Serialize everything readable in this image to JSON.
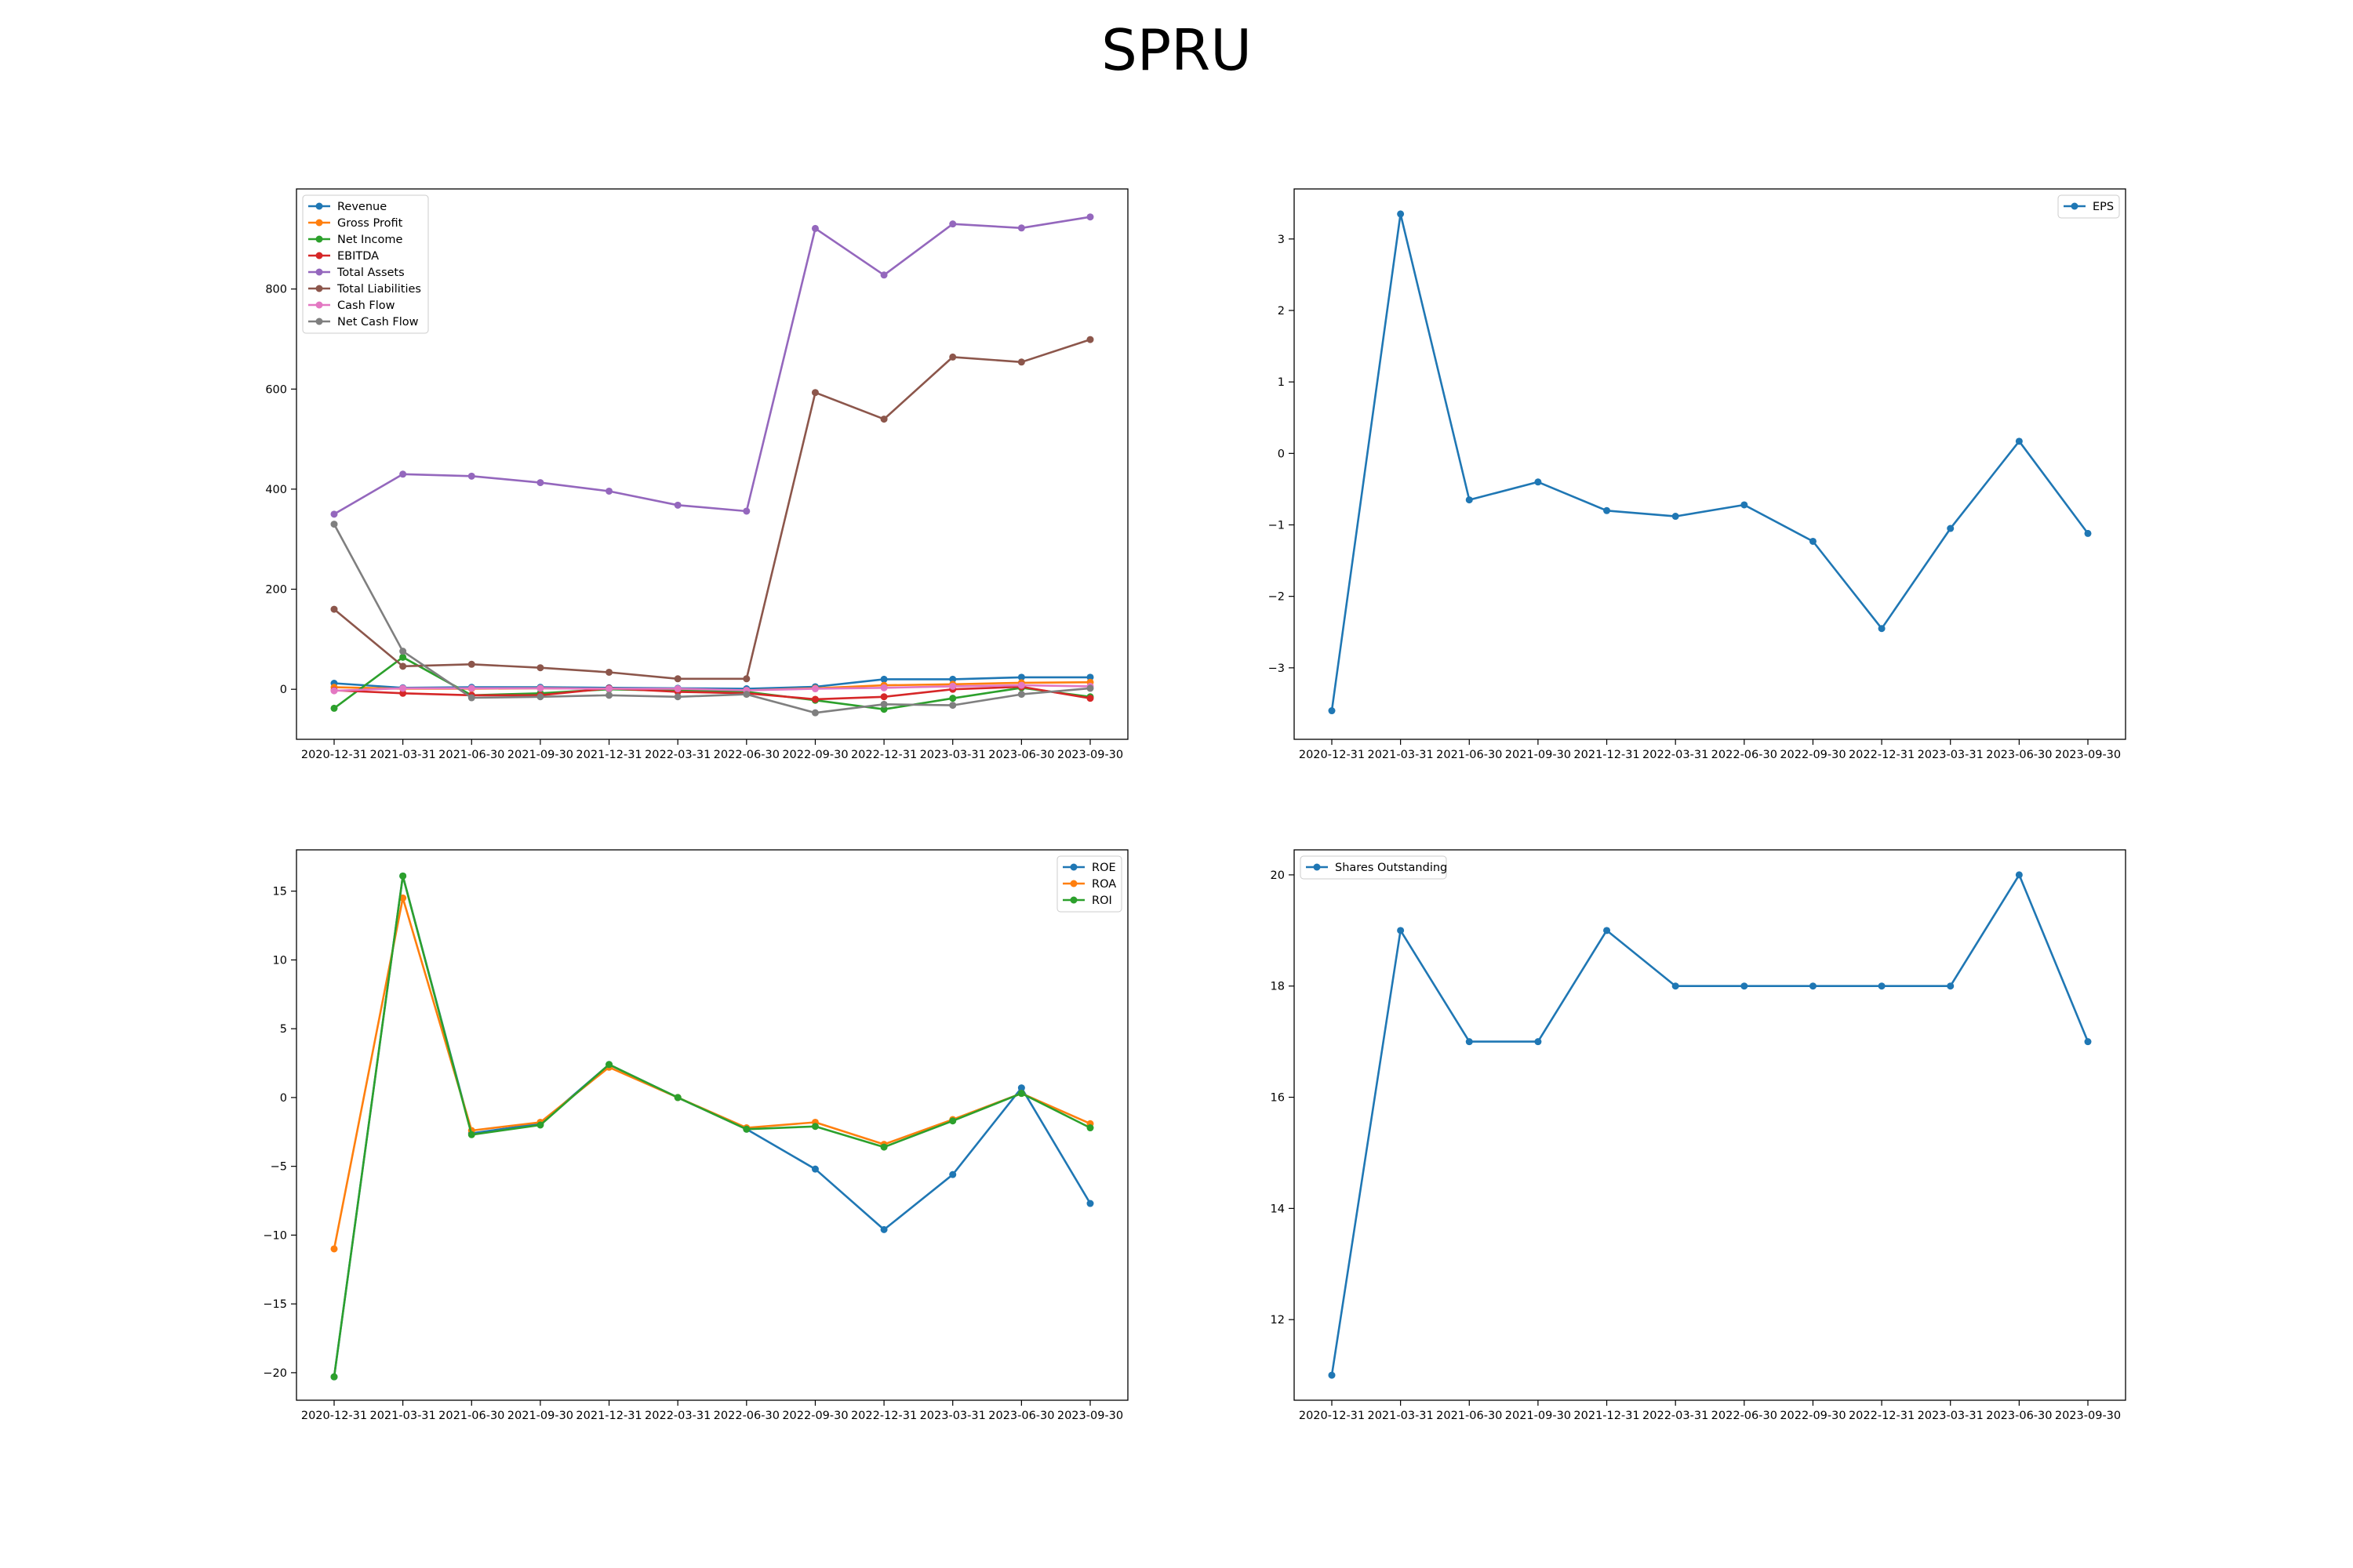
{
  "title": "SPRU",
  "chart_data": [
    {
      "type": "line",
      "x": [
        "2020-12-31",
        "2021-03-31",
        "2021-06-30",
        "2021-09-30",
        "2021-12-31",
        "2022-03-31",
        "2022-06-30",
        "2022-09-30",
        "2022-12-31",
        "2023-03-31",
        "2023-06-30",
        "2023-09-30"
      ],
      "ylim": [
        -100,
        1000
      ],
      "yticks": [
        0,
        200,
        400,
        600,
        800
      ],
      "legend_position": "upper left",
      "series": [
        {
          "name": "Revenue",
          "color": "#1f77b4",
          "values": [
            12,
            3,
            4,
            4,
            3,
            2,
            1,
            5,
            20,
            20,
            24,
            24
          ]
        },
        {
          "name": "Gross Profit",
          "color": "#ff7f0e",
          "values": [
            4,
            1,
            1,
            2,
            1,
            0,
            -2,
            2,
            8,
            10,
            13,
            14
          ]
        },
        {
          "name": "Net Income",
          "color": "#2ca02c",
          "values": [
            -38,
            64,
            -12,
            -8,
            0,
            -3,
            -5,
            -22,
            -40,
            -18,
            3,
            -15
          ]
        },
        {
          "name": "EBITDA",
          "color": "#d62728",
          "values": [
            -2,
            -8,
            -12,
            -12,
            2,
            -5,
            -8,
            -20,
            -15,
            0,
            5,
            -18
          ]
        },
        {
          "name": "Total Assets",
          "color": "#9467bd",
          "values": [
            350,
            430,
            426,
            413,
            396,
            368,
            356,
            921,
            828,
            930,
            922,
            944
          ]
        },
        {
          "name": "Total Liabilities",
          "color": "#8c564b",
          "values": [
            160,
            46,
            50,
            43,
            34,
            21,
            21,
            593,
            540,
            664,
            654,
            699
          ]
        },
        {
          "name": "Cash Flow",
          "color": "#e377c2",
          "values": [
            -3,
            2,
            2,
            2,
            1,
            1,
            -2,
            1,
            3,
            6,
            8,
            6
          ]
        },
        {
          "name": "Net Cash Flow",
          "color": "#7f7f7f",
          "values": [
            330,
            76,
            -17,
            -15,
            -12,
            -15,
            -10,
            -47,
            -30,
            -32,
            -10,
            2
          ]
        }
      ]
    },
    {
      "type": "line",
      "x": [
        "2020-12-31",
        "2021-03-31",
        "2021-06-30",
        "2021-09-30",
        "2021-12-31",
        "2022-03-31",
        "2022-06-30",
        "2022-09-30",
        "2022-12-31",
        "2023-03-31",
        "2023-06-30",
        "2023-09-30"
      ],
      "ylim": [
        -4,
        3.7
      ],
      "yticks": [
        -3,
        -2,
        -1,
        0,
        1,
        2,
        3
      ],
      "legend_position": "upper right",
      "series": [
        {
          "name": "EPS",
          "color": "#1f77b4",
          "values": [
            -3.6,
            3.35,
            -0.65,
            -0.4,
            -0.8,
            -0.88,
            -0.72,
            -1.23,
            -2.45,
            -1.05,
            0.17,
            -1.12
          ]
        }
      ]
    },
    {
      "type": "line",
      "x": [
        "2020-12-31",
        "2021-03-31",
        "2021-06-30",
        "2021-09-30",
        "2021-12-31",
        "2022-03-31",
        "2022-06-30",
        "2022-09-30",
        "2022-12-31",
        "2023-03-31",
        "2023-06-30",
        "2023-09-30"
      ],
      "ylim": [
        -22,
        18
      ],
      "yticks": [
        -20,
        -15,
        -10,
        -5,
        0,
        5,
        10,
        15
      ],
      "legend_position": "upper right",
      "series": [
        {
          "name": "ROE",
          "color": "#1f77b4",
          "values": [
            -20.3,
            16.1,
            -2.6,
            -1.9,
            2.4,
            0,
            -2.3,
            -5.2,
            -9.6,
            -5.6,
            0.7,
            -7.7
          ]
        },
        {
          "name": "ROA",
          "color": "#ff7f0e",
          "values": [
            -11.0,
            14.5,
            -2.4,
            -1.8,
            2.2,
            0,
            -2.2,
            -1.8,
            -3.4,
            -1.6,
            0.3,
            -1.9
          ]
        },
        {
          "name": "ROI",
          "color": "#2ca02c",
          "values": [
            -20.3,
            16.1,
            -2.7,
            -2.0,
            2.4,
            0,
            -2.3,
            -2.1,
            -3.6,
            -1.7,
            0.3,
            -2.2
          ]
        }
      ]
    },
    {
      "type": "line",
      "x": [
        "2020-12-31",
        "2021-03-31",
        "2021-06-30",
        "2021-09-30",
        "2021-12-31",
        "2022-03-31",
        "2022-06-30",
        "2022-09-30",
        "2022-12-31",
        "2023-03-31",
        "2023-06-30",
        "2023-09-30"
      ],
      "ylim": [
        10.55,
        20.45
      ],
      "yticks": [
        12,
        14,
        16,
        18,
        20
      ],
      "legend_position": "upper left",
      "series": [
        {
          "name": "Shares Outstanding",
          "color": "#1f77b4",
          "values": [
            11,
            19,
            17,
            17,
            19,
            18,
            18,
            18,
            18,
            18,
            20,
            17
          ]
        }
      ]
    }
  ]
}
